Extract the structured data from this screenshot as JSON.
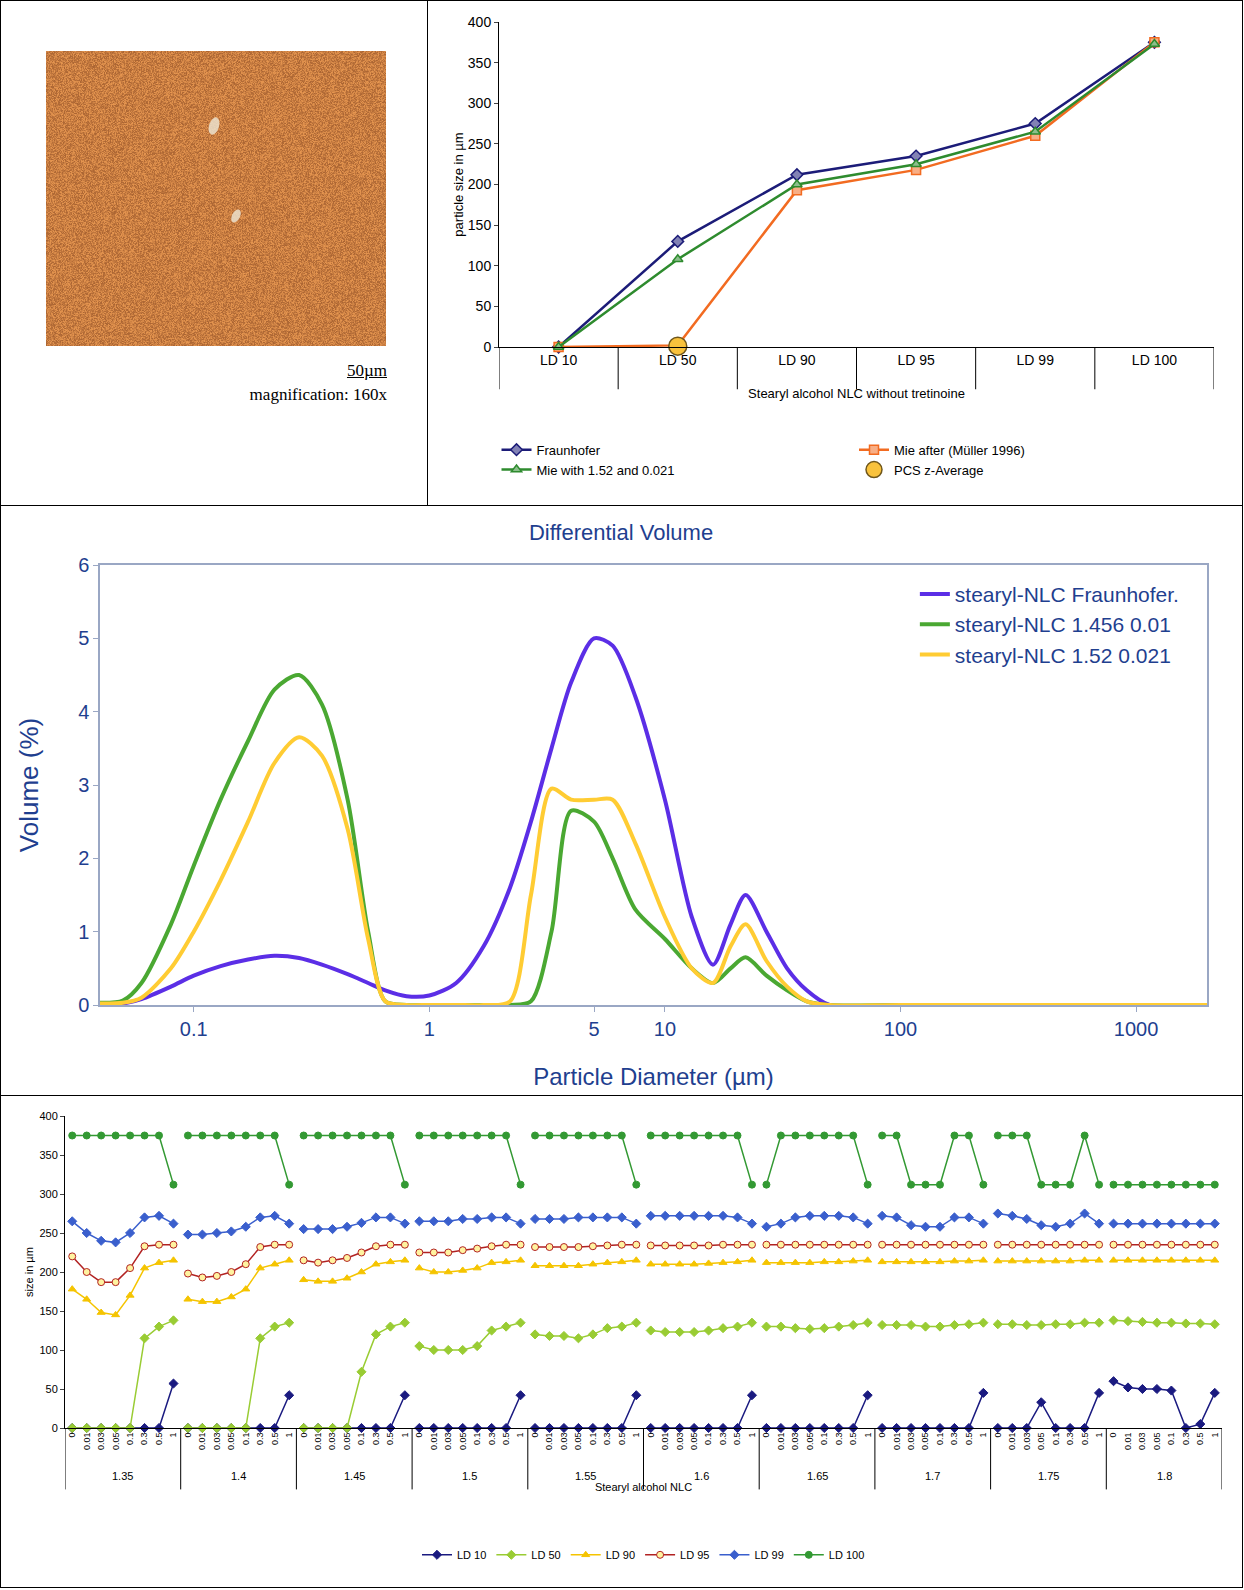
{
  "image": {
    "scale_bar": "50µm",
    "caption": "magnification: 160x"
  },
  "chart_data": [
    {
      "type": "line",
      "x_label": "Stearyl alcohol NLC without tretinoine",
      "y_label": "particle size in µm",
      "categories": [
        "LD 10",
        "LD 50",
        "LD 90",
        "LD 95",
        "LD 99",
        "LD 100"
      ],
      "ylim": [
        0,
        400
      ],
      "yticks": [
        0,
        50,
        100,
        150,
        200,
        250,
        300,
        350,
        400
      ],
      "grid": false,
      "legend": "bottom",
      "series": [
        {
          "name": "Fraunhofer",
          "type": "line",
          "color": "#1c1c78",
          "marker": "diamond",
          "line_style": "solid",
          "values": [
            0,
            130,
            212,
            235,
            275,
            375
          ]
        },
        {
          "name": "Mie after (Müller 1996)",
          "type": "line",
          "color": "#f26b21",
          "marker": "square",
          "line_style": "solid",
          "values": [
            0,
            2,
            193,
            218,
            260,
            375
          ]
        },
        {
          "name": "Mie with 1.52 and 0.021",
          "type": "line",
          "color": "#2e8b2e",
          "marker": "triangle-up",
          "line_style": "solid",
          "values": [
            0,
            108,
            200,
            225,
            265,
            373
          ]
        },
        {
          "name": "PCS z-Average",
          "type": "scatter",
          "color": "#f9c23c",
          "marker": "circle",
          "values": [
            null,
            1,
            null,
            null,
            null,
            null
          ]
        }
      ]
    },
    {
      "type": "line",
      "title": "Differential Volume",
      "x_label": "Particle Diameter (µm)",
      "y_label": "Volume (%)",
      "log": "x",
      "x": [
        0.04,
        0.05,
        0.06,
        0.08,
        0.1,
        0.13,
        0.17,
        0.22,
        0.28,
        0.35,
        0.45,
        0.55,
        0.65,
        0.8,
        1,
        1.3,
        1.7,
        2.2,
        2.7,
        3.3,
        4,
        5,
        6,
        7.5,
        10,
        13,
        16,
        19,
        22,
        27,
        33,
        40,
        50,
        100,
        1000,
        2000
      ],
      "xlim": [
        0.04,
        2000
      ],
      "xticks": [
        0.1,
        1,
        5,
        10,
        100,
        1000
      ],
      "ylim": [
        0,
        6
      ],
      "yticks": [
        0,
        1,
        2,
        3,
        4,
        5,
        6
      ],
      "grid": false,
      "legend": "top right",
      "series": [
        {
          "name": "stearyl-NLC Fraunhofer.",
          "color": "#5b2ee6",
          "line_style": "solid",
          "values": [
            0,
            0.02,
            0.08,
            0.25,
            0.4,
            0.53,
            0.62,
            0.67,
            0.64,
            0.55,
            0.42,
            0.3,
            0.2,
            0.12,
            0.13,
            0.3,
            0.8,
            1.6,
            2.5,
            3.5,
            4.4,
            5.0,
            4.9,
            4.2,
            2.8,
            1.2,
            0.55,
            1.1,
            1.5,
            1.0,
            0.5,
            0.2,
            0,
            0,
            0,
            0
          ]
        },
        {
          "name": "stearyl-NLC 1.456 0.01",
          "color": "#4aa832",
          "line_style": "solid",
          "values": [
            0.03,
            0.06,
            0.3,
            1.1,
            1.9,
            2.8,
            3.6,
            4.3,
            4.5,
            4.1,
            2.8,
            1.0,
            0.05,
            0,
            0,
            0,
            0,
            0,
            0.05,
            1.0,
            2.65,
            2.5,
            2.0,
            1.3,
            0.9,
            0.5,
            0.3,
            0.5,
            0.65,
            0.4,
            0.2,
            0.05,
            0,
            0,
            0,
            0
          ]
        },
        {
          "name": "stearyl-NLC 1.52 0.021",
          "color": "#ffcc33",
          "line_style": "solid",
          "values": [
            0.02,
            0.03,
            0.1,
            0.5,
            1.0,
            1.7,
            2.5,
            3.3,
            3.65,
            3.4,
            2.4,
            0.9,
            0.05,
            0,
            0,
            0,
            0,
            0.05,
            1.5,
            2.95,
            2.8,
            2.8,
            2.8,
            2.2,
            1.2,
            0.5,
            0.3,
            0.8,
            1.1,
            0.6,
            0.25,
            0.05,
            0,
            0,
            0,
            0
          ]
        }
      ]
    },
    {
      "type": "line",
      "x_label": "Stearyl alcohol NLC",
      "y_label": "size in µm",
      "groups": [
        "1.35",
        "1.4",
        "1.45",
        "1.5",
        "1.55",
        "1.6",
        "1.65",
        "1.7",
        "1.75",
        "1.8"
      ],
      "categories": [
        "0",
        "0.01",
        "0.03",
        "0.05",
        "0.1",
        "0.3",
        "0.5",
        "1",
        "0",
        "0.01",
        "0.03",
        "0.05",
        "0.1",
        "0.3",
        "0.5",
        "1",
        "0",
        "0.01",
        "0.03",
        "0.05",
        "0.1",
        "0.3",
        "0.5",
        "1",
        "0",
        "0.01",
        "0.03",
        "0.05",
        "0.1",
        "0.3",
        "0.5",
        "1",
        "0",
        "0.01",
        "0.03",
        "0.05",
        "0.1",
        "0.3",
        "0.5",
        "1",
        "0",
        "0.01",
        "0.03",
        "0.05",
        "0.1",
        "0.3",
        "0.5",
        "1",
        "0",
        "0.01",
        "0.03",
        "0.05",
        "0.1",
        "0.3",
        "0.5",
        "1",
        "0",
        "0.01",
        "0.03",
        "0.05",
        "0.1",
        "0.3",
        "0.5",
        "1",
        "0",
        "0.01",
        "0.03",
        "0.05",
        "0.1",
        "0.3",
        "0.5",
        "1",
        "0",
        "0.01",
        "0.03",
        "0.05",
        "0.1",
        "0.3",
        "0.5",
        "1"
      ],
      "ylim": [
        0,
        400
      ],
      "yticks": [
        0,
        50,
        100,
        150,
        200,
        250,
        300,
        350,
        400
      ],
      "grid": false,
      "legend": "bottom",
      "series": [
        {
          "name": "LD 10",
          "color": "#1a1a80",
          "marker": "diamond",
          "line_style": "solid",
          "values": [
            0,
            0,
            0,
            0,
            0,
            0,
            0,
            57,
            0,
            0,
            0,
            0,
            0,
            0,
            0,
            42,
            0,
            0,
            0,
            0,
            0,
            0,
            0,
            42,
            0,
            0,
            0,
            0,
            0,
            0,
            0,
            42,
            0,
            0,
            0,
            0,
            0,
            0,
            0,
            42,
            0,
            0,
            0,
            0,
            0,
            0,
            0,
            42,
            0,
            0,
            0,
            0,
            0,
            0,
            0,
            42,
            0,
            0,
            0,
            0,
            0,
            0,
            0,
            45,
            0,
            0,
            0,
            33,
            0,
            0,
            0,
            45,
            60,
            52,
            50,
            50,
            48,
            0,
            5,
            45
          ]
        },
        {
          "name": "LD 50",
          "color": "#99cc33",
          "marker": "diamond",
          "line_style": "solid",
          "values": [
            0,
            0,
            0,
            0,
            0,
            115,
            130,
            138,
            0,
            0,
            0,
            0,
            0,
            115,
            130,
            135,
            0,
            0,
            0,
            0,
            72,
            120,
            130,
            135,
            105,
            100,
            100,
            100,
            105,
            125,
            130,
            135,
            120,
            118,
            118,
            115,
            120,
            128,
            130,
            135,
            125,
            123,
            123,
            123,
            125,
            128,
            130,
            135,
            130,
            130,
            128,
            127,
            128,
            130,
            132,
            135,
            132,
            132,
            132,
            130,
            130,
            132,
            133,
            135,
            133,
            133,
            132,
            132,
            133,
            133,
            135,
            135,
            138,
            137,
            136,
            135,
            135,
            134,
            134,
            133
          ]
        },
        {
          "name": "LD 90",
          "color": "#f5c400",
          "marker": "triangle-up",
          "line_style": "solid",
          "values": [
            178,
            165,
            148,
            145,
            170,
            205,
            212,
            215,
            165,
            162,
            162,
            168,
            178,
            205,
            210,
            215,
            190,
            188,
            188,
            192,
            200,
            210,
            213,
            215,
            205,
            200,
            200,
            202,
            205,
            212,
            213,
            215,
            208,
            208,
            208,
            208,
            210,
            212,
            213,
            215,
            210,
            210,
            210,
            210,
            211,
            212,
            213,
            215,
            212,
            212,
            212,
            212,
            213,
            213,
            214,
            215,
            213,
            213,
            213,
            213,
            213,
            214,
            214,
            215,
            214,
            214,
            214,
            214,
            214,
            214,
            215,
            215,
            215,
            215,
            215,
            215,
            215,
            215,
            215,
            215
          ]
        },
        {
          "name": "LD 95",
          "color": "#b22222",
          "marker": "circle",
          "line_style": "solid",
          "values": [
            220,
            200,
            187,
            187,
            205,
            233,
            235,
            235,
            198,
            193,
            195,
            200,
            210,
            232,
            235,
            235,
            215,
            212,
            215,
            218,
            225,
            233,
            235,
            235,
            225,
            225,
            225,
            228,
            230,
            233,
            235,
            235,
            232,
            232,
            232,
            232,
            233,
            234,
            235,
            235,
            234,
            234,
            234,
            234,
            234,
            235,
            235,
            235,
            235,
            235,
            235,
            235,
            235,
            235,
            235,
            235,
            235,
            235,
            235,
            235,
            235,
            235,
            235,
            235,
            235,
            235,
            235,
            235,
            235,
            235,
            235,
            235,
            235,
            235,
            235,
            235,
            235,
            235,
            235,
            235
          ]
        },
        {
          "name": "LD 99",
          "color": "#3a5fcd",
          "marker": "diamond",
          "line_style": "solid",
          "values": [
            265,
            250,
            240,
            238,
            250,
            270,
            272,
            262,
            248,
            248,
            250,
            252,
            258,
            270,
            272,
            262,
            255,
            255,
            255,
            258,
            263,
            270,
            270,
            262,
            265,
            265,
            265,
            268,
            268,
            270,
            270,
            262,
            268,
            268,
            268,
            270,
            270,
            270,
            270,
            262,
            272,
            272,
            272,
            272,
            272,
            272,
            270,
            262,
            258,
            262,
            270,
            272,
            272,
            272,
            270,
            262,
            272,
            270,
            260,
            258,
            258,
            270,
            270,
            262,
            275,
            272,
            268,
            260,
            258,
            262,
            275,
            262,
            262,
            262,
            262,
            262,
            262,
            262,
            262,
            262
          ]
        },
        {
          "name": "LD 100",
          "color": "#339933",
          "marker": "circle",
          "line_style": "solid",
          "values": [
            375,
            375,
            375,
            375,
            375,
            375,
            375,
            312,
            375,
            375,
            375,
            375,
            375,
            375,
            375,
            312,
            375,
            375,
            375,
            375,
            375,
            375,
            375,
            312,
            375,
            375,
            375,
            375,
            375,
            375,
            375,
            312,
            375,
            375,
            375,
            375,
            375,
            375,
            375,
            312,
            375,
            375,
            375,
            375,
            375,
            375,
            375,
            312,
            312,
            375,
            375,
            375,
            375,
            375,
            375,
            312,
            375,
            375,
            312,
            312,
            312,
            375,
            375,
            312,
            375,
            375,
            375,
            312,
            312,
            312,
            375,
            312,
            312,
            312,
            312,
            312,
            312,
            312,
            312,
            312
          ]
        }
      ]
    }
  ]
}
